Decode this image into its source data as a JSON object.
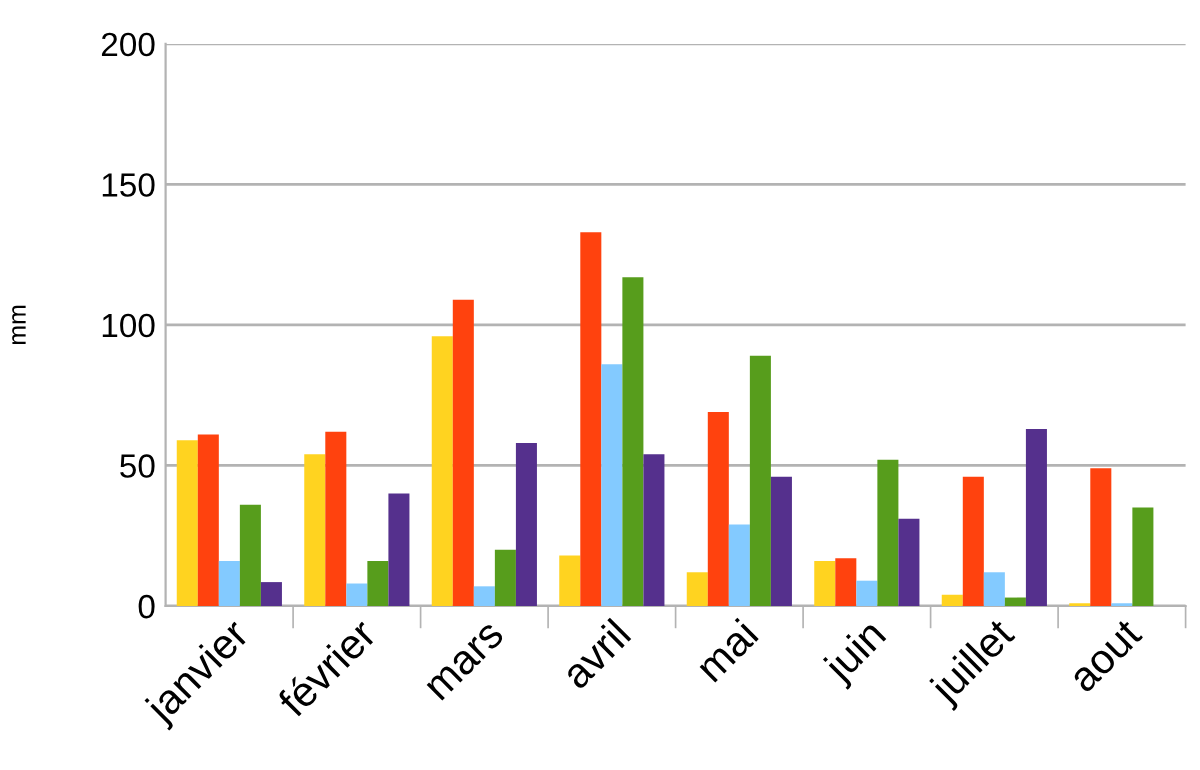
{
  "chart_data": {
    "type": "bar",
    "ylabel": "mm",
    "categories": [
      "janvier",
      "février",
      "mars",
      "avril",
      "mai",
      "juin",
      "juillet",
      "aout"
    ],
    "series": [
      {
        "color": "#ffd320",
        "values": [
          59,
          54,
          96,
          18,
          12,
          16,
          4,
          1
        ]
      },
      {
        "color": "#ff420e",
        "values": [
          61,
          62,
          109,
          133,
          69,
          17,
          46,
          49
        ]
      },
      {
        "color": "#83caff",
        "values": [
          16,
          8,
          7,
          86,
          29,
          9,
          12,
          1
        ]
      },
      {
        "color": "#579d1c",
        "values": [
          36,
          16,
          20,
          117,
          89,
          52,
          3,
          35
        ]
      },
      {
        "color": "#55308d",
        "values": [
          8.5,
          40,
          58,
          54,
          46,
          31,
          63,
          null
        ]
      }
    ],
    "ylim": [
      0,
      200
    ],
    "yticks": [
      0,
      50,
      100,
      150,
      200
    ],
    "grid": "y",
    "legend": false
  }
}
